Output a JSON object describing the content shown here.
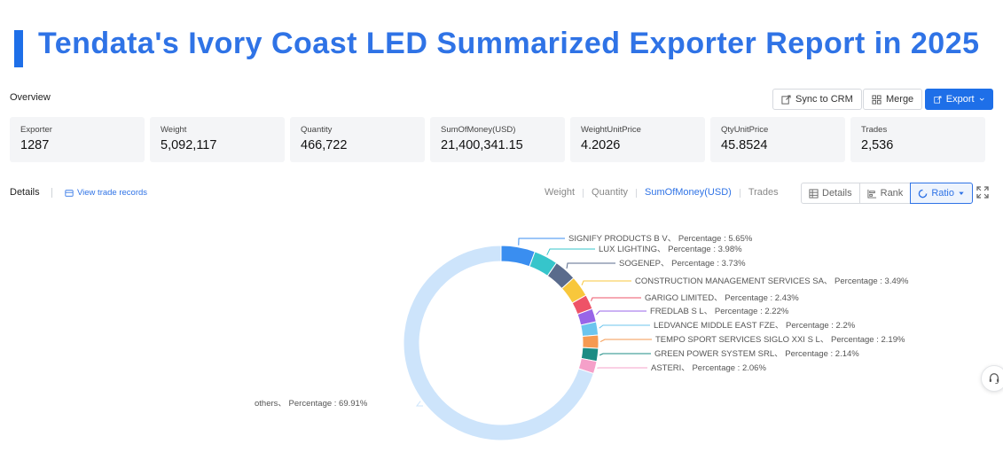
{
  "header": {
    "title": "Tendata's Ivory Coast LED Summarized Exporter Report in 2025"
  },
  "overview": {
    "label": "Overview",
    "toolbar": {
      "sync_label": "Sync to CRM",
      "merge_label": "Merge",
      "export_label": "Export"
    },
    "stats": [
      {
        "label": "Exporter",
        "value": "1287"
      },
      {
        "label": "Weight",
        "value": "5,092,117"
      },
      {
        "label": "Quantity",
        "value": "466,722"
      },
      {
        "label": "SumOfMoney(USD)",
        "value": "21,400,341.15"
      },
      {
        "label": "WeightUnitPrice",
        "value": "4.2026"
      },
      {
        "label": "QtyUnitPrice",
        "value": "45.8524"
      },
      {
        "label": "Trades",
        "value": "2,536"
      }
    ]
  },
  "details": {
    "label": "Details",
    "view_records_label": "View trade records",
    "metric_tabs": [
      "Weight",
      "Quantity",
      "SumOfMoney(USD)",
      "Trades"
    ],
    "active_metric": "SumOfMoney(USD)",
    "view_buttons": {
      "details_label": "Details",
      "rank_label": "Rank",
      "ratio_label": "Ratio"
    },
    "active_view": "Ratio"
  },
  "chart_data": {
    "type": "pie",
    "style": "donut",
    "percent_label": "Percentage",
    "slices": [
      {
        "name": "SIGNIFY PRODUCTS B V",
        "value": 5.65,
        "display": "5.65%",
        "color": "#3a8ef0"
      },
      {
        "name": "LUX LIGHTING",
        "value": 3.98,
        "display": "3.98%",
        "color": "#36c5cb"
      },
      {
        "name": "SOGENEP",
        "value": 3.73,
        "display": "3.73%",
        "color": "#5a6b8c"
      },
      {
        "name": "CONSTRUCTION MANAGEMENT SERVICES SA",
        "value": 3.49,
        "display": "3.49%",
        "color": "#f8c73c"
      },
      {
        "name": "GARIGO LIMITED",
        "value": 2.43,
        "display": "2.43%",
        "color": "#ee5367"
      },
      {
        "name": "FREDLAB S L",
        "value": 2.22,
        "display": "2.22%",
        "color": "#9865e8"
      },
      {
        "name": "LEDVANCE MIDDLE EAST FZE",
        "value": 2.2,
        "display": "2.2%",
        "color": "#6cc5ee"
      },
      {
        "name": "TEMPO SPORT SERVICES SIGLO XXI S L",
        "value": 2.19,
        "display": "2.19%",
        "color": "#f69a51"
      },
      {
        "name": "GREEN POWER SYSTEM SRL",
        "value": 2.14,
        "display": "2.14%",
        "color": "#1c8c84"
      },
      {
        "name": "ASTERI",
        "value": 2.06,
        "display": "2.06%",
        "color": "#f5a0c9"
      },
      {
        "name": "others",
        "value": 69.91,
        "display": "69.91%",
        "color": "#cde4fb"
      }
    ]
  }
}
